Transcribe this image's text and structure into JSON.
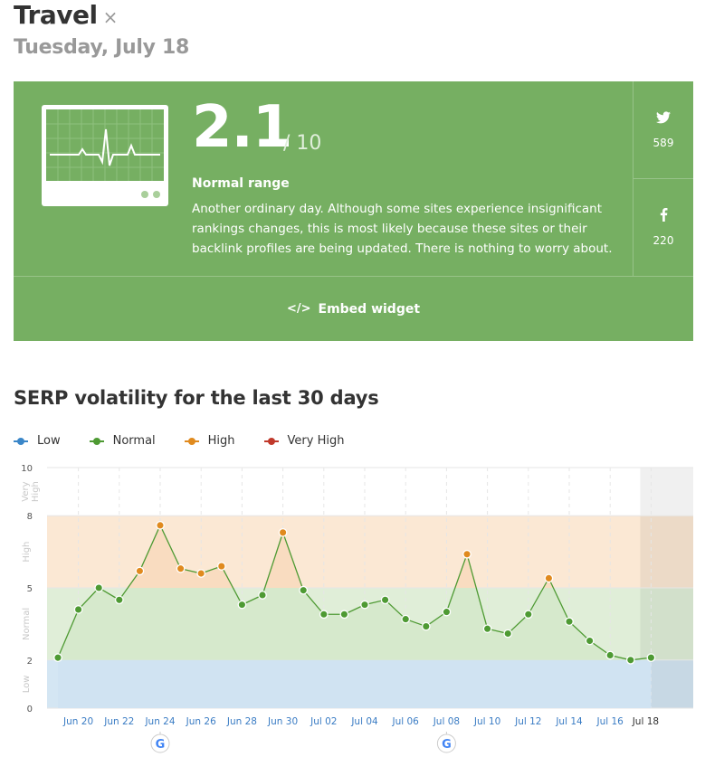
{
  "header": {
    "title": "Travel",
    "close_glyph": "×",
    "date": "Tuesday, July 18"
  },
  "card": {
    "score": "2.1",
    "score_denominator": "/ 10",
    "range_label": "Normal range",
    "description": "Another ordinary day. Although some sites experience insignificant rankings changes, this is most likely because these sites or their backlink profiles are being updated. There is nothing to worry about.",
    "social": {
      "twitter_icon": "twitter-icon",
      "twitter_count": "589",
      "facebook_icon": "facebook-icon",
      "facebook_count": "220"
    },
    "embed_label": "Embed widget",
    "embed_glyph": "</>",
    "bg_color": "#76af62"
  },
  "section_title": "SERP volatility for the last 30 days",
  "legend": [
    {
      "label": "Low",
      "color": "#3a86c8"
    },
    {
      "label": "Normal",
      "color": "#4e9a33"
    },
    {
      "label": "High",
      "color": "#e08a1e"
    },
    {
      "label": "Very High",
      "color": "#c0392b"
    }
  ],
  "chart_data": {
    "type": "area",
    "ylim": [
      0,
      10
    ],
    "y_ticks": [
      "0",
      "2",
      "5",
      "8",
      "10"
    ],
    "y_tick_values": [
      0,
      2,
      5,
      8,
      10
    ],
    "bands": [
      {
        "label": "Low",
        "from": 0,
        "to": 2,
        "color": "#d4e6f3"
      },
      {
        "label": "Normal",
        "from": 2,
        "to": 5,
        "color": "#e0eed8"
      },
      {
        "label": "High",
        "from": 5,
        "to": 8,
        "color": "#fbe8d4"
      },
      {
        "label": "Very High",
        "from": 8,
        "to": 10,
        "color": "#ffffff"
      }
    ],
    "x_labels": [
      "Jun 20",
      "Jun 22",
      "Jun 24",
      "Jun 26",
      "Jun 28",
      "Jun 30",
      "Jul 02",
      "Jul 04",
      "Jul 06",
      "Jul 08",
      "Jul 10",
      "Jul 12",
      "Jul 14",
      "Jul 16",
      "Jul 18"
    ],
    "x_label_days": [
      1,
      3,
      5,
      7,
      9,
      11,
      13,
      15,
      17,
      19,
      21,
      23,
      25,
      27,
      29
    ],
    "google_update_days": [
      5,
      19
    ],
    "google_icon": "google-icon",
    "series": [
      {
        "dates": [
          "Jun 19",
          "Jun 20",
          "Jun 21",
          "Jun 22",
          "Jun 23",
          "Jun 24",
          "Jun 25",
          "Jun 26",
          "Jun 27",
          "Jun 28",
          "Jun 29",
          "Jun 30",
          "Jul 01",
          "Jul 02",
          "Jul 03",
          "Jul 04",
          "Jul 05",
          "Jul 06",
          "Jul 07",
          "Jul 08",
          "Jul 09",
          "Jul 10",
          "Jul 11",
          "Jul 12",
          "Jul 13",
          "Jul 14",
          "Jul 15",
          "Jul 16",
          "Jul 17",
          "Jul 18"
        ],
        "values": [
          2.1,
          4.1,
          5.0,
          4.5,
          5.7,
          7.6,
          5.8,
          5.6,
          5.9,
          4.3,
          4.7,
          7.3,
          4.9,
          3.9,
          3.9,
          4.3,
          4.5,
          3.7,
          3.4,
          4.0,
          6.4,
          3.3,
          3.1,
          3.9,
          5.4,
          3.6,
          2.8,
          2.2,
          2.0,
          2.1
        ]
      }
    ],
    "point_colors": {
      "low": "#3a86c8",
      "normal": "#4e9a33",
      "high": "#e08a1e",
      "very_high": "#c0392b"
    },
    "grid": true
  }
}
